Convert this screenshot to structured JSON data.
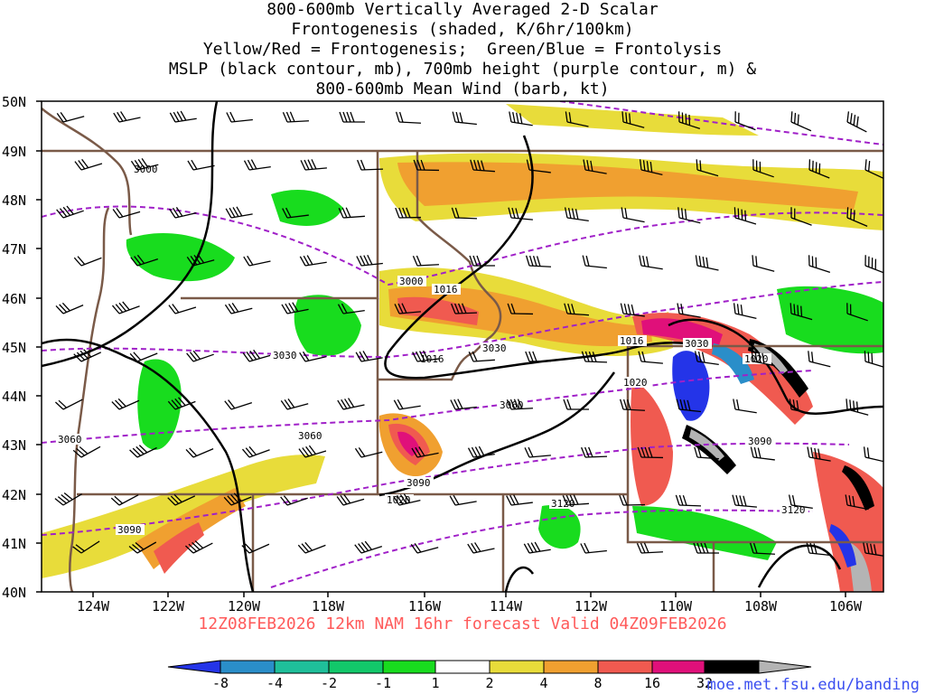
{
  "title": {
    "lines": [
      "800-600mb Vertically Averaged 2-D Scalar",
      "Frontogenesis (shaded, K/6hr/100km)",
      "Yellow/Red = Frontogenesis;  Green/Blue = Frontolysis",
      "MSLP (black contour, mb), 700mb height (purple contour, m) &",
      "800-600mb Mean Wind (barb, kt)"
    ]
  },
  "map": {
    "region": "Pacific Northwest / Northern Rockies",
    "lat_labels": [
      "50N",
      "49N",
      "48N",
      "47N",
      "46N",
      "45N",
      "44N",
      "43N",
      "42N",
      "41N",
      "40N"
    ],
    "lon_labels": [
      "124W",
      "122W",
      "120W",
      "118W",
      "116W",
      "114W",
      "112W",
      "110W",
      "108W",
      "106W"
    ],
    "mslp_labels": [
      "1016",
      "1016",
      "1016",
      "1020",
      "1020"
    ],
    "height_labels": [
      "3000",
      "3000",
      "3030",
      "3030",
      "3030",
      "3060",
      "3060",
      "3060",
      "3090",
      "3090",
      "3090",
      "3120",
      "3120"
    ],
    "colors": {
      "border": "#7a5a48",
      "mslp": "#000000",
      "height": "#a020c8"
    }
  },
  "valid_time": "12Z08FEB2026 12km NAM 16hr forecast Valid 04Z09FEB2026",
  "colorbar": {
    "labels": [
      "-8",
      "-4",
      "-2",
      "-1",
      "1",
      "2",
      "4",
      "8",
      "16",
      "32"
    ],
    "colors": [
      "#2434e8",
      "#2a8ec9",
      "#1fbf9a",
      "#12c86a",
      "#18dc1e",
      "#ffffff",
      "#e8dc3a",
      "#f0a030",
      "#f05a50",
      "#e0107a",
      "#000000",
      "#b4b4b4"
    ]
  },
  "credit": "moe.met.fsu.edu/banding"
}
